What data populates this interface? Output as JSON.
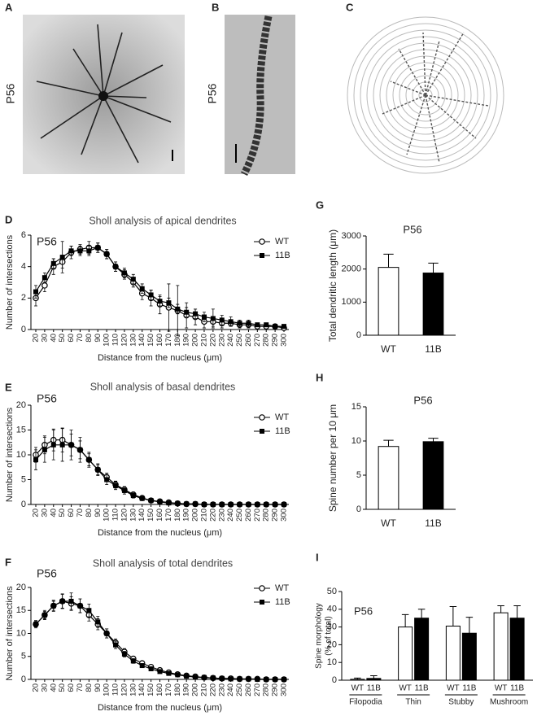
{
  "images": [
    {
      "panel": "A",
      "label": "P56"
    },
    {
      "panel": "B",
      "label": "P56"
    },
    {
      "panel": "C"
    }
  ],
  "chart_data": [
    {
      "type": "line",
      "panel": "D",
      "title": "Sholl analysis of apical dendrites",
      "annotation": "P56",
      "xlabel": "Distance from the nucleus (μm)",
      "ylabel": "Number of intersections",
      "legend": "upper right",
      "categories": [
        20,
        30,
        40,
        50,
        60,
        70,
        80,
        90,
        100,
        110,
        120,
        130,
        140,
        150,
        160,
        170,
        180,
        190,
        200,
        210,
        220,
        230,
        240,
        250,
        260,
        270,
        280,
        290,
        300
      ],
      "ylim": [
        0,
        6
      ],
      "yticks": [
        0,
        2,
        4,
        6
      ],
      "series": [
        {
          "name": "WT",
          "color": "#000000",
          "marker": "circle",
          "values": [
            2.0,
            2.8,
            4.0,
            4.3,
            4.9,
            5.1,
            5.2,
            5.2,
            4.8,
            4.0,
            3.5,
            3.0,
            2.3,
            2.0,
            1.6,
            1.4,
            1.2,
            0.9,
            0.8,
            0.5,
            0.5,
            0.4,
            0.4,
            0.3,
            0.3,
            0.2,
            0.2,
            0.2,
            0.1
          ],
          "errors": [
            0.5,
            0.4,
            0.5,
            0.4,
            0.4,
            0.3,
            0.4,
            0.3,
            0.3,
            0.3,
            0.3,
            0.3,
            0.4,
            0.5,
            0.6,
            1.5,
            1.6,
            0.8,
            0.5,
            0.4,
            0.3,
            0.3,
            0.2,
            0.2,
            0.2,
            0.2,
            0.1,
            0.1,
            0.1
          ]
        },
        {
          "name": "11B",
          "color": "#000000",
          "marker": "square",
          "values": [
            2.4,
            3.3,
            4.2,
            4.6,
            5.0,
            5.0,
            5.0,
            5.2,
            4.8,
            4.0,
            3.6,
            3.2,
            2.6,
            2.2,
            1.8,
            1.7,
            1.3,
            1.1,
            1.0,
            0.8,
            0.7,
            0.6,
            0.5,
            0.4,
            0.4,
            0.3,
            0.3,
            0.2,
            0.2
          ],
          "errors": [
            0.4,
            0.3,
            0.3,
            1.0,
            0.3,
            0.3,
            0.3,
            0.3,
            0.3,
            0.3,
            0.3,
            0.3,
            0.3,
            0.3,
            0.3,
            0.3,
            0.3,
            0.3,
            0.3,
            0.3,
            0.6,
            0.3,
            0.3,
            0.2,
            0.2,
            0.1,
            0.1,
            0.1,
            0.1
          ]
        }
      ]
    },
    {
      "type": "line",
      "panel": "E",
      "title": "Sholl analysis of basal dendrites",
      "annotation": "P56",
      "xlabel": "Distance from the nucleus (μm)",
      "ylabel": "Number of intersections",
      "legend": "upper right",
      "categories": [
        20,
        30,
        40,
        50,
        60,
        70,
        80,
        90,
        100,
        110,
        120,
        130,
        140,
        150,
        160,
        170,
        180,
        190,
        200,
        210,
        220,
        230,
        240,
        250,
        260,
        270,
        280,
        290,
        300
      ],
      "ylim": [
        0,
        20
      ],
      "yticks": [
        0,
        5,
        10,
        15,
        20
      ],
      "series": [
        {
          "name": "WT",
          "color": "#000000",
          "marker": "circle",
          "values": [
            10,
            12,
            13,
            13,
            12,
            11,
            9,
            7,
            5.5,
            4,
            3,
            2,
            1.3,
            0.8,
            0.6,
            0.4,
            0.2,
            0.1,
            0.1,
            0,
            0,
            0,
            0,
            0,
            0,
            0,
            0,
            0,
            0
          ],
          "errors": [
            1.5,
            1.8,
            2.2,
            2.4,
            2.2,
            1.8,
            1.2,
            1,
            0.8,
            0.7,
            0.6,
            0.5,
            0.4,
            0.3,
            0.2,
            0.2,
            0.1,
            0.1,
            0.1,
            0,
            0,
            0,
            0,
            0,
            0,
            0,
            0,
            0,
            0
          ]
        },
        {
          "name": "11B",
          "color": "#000000",
          "marker": "square",
          "values": [
            9,
            11,
            12,
            12,
            12,
            11,
            9,
            7,
            5,
            3.8,
            2.8,
            1.8,
            1.2,
            0.8,
            0.5,
            0.3,
            0.2,
            0.1,
            0.1,
            0,
            0,
            0,
            0,
            0,
            0,
            0,
            0,
            0,
            0
          ],
          "errors": [
            2,
            2.5,
            3,
            3.3,
            3,
            2.5,
            1.5,
            1.2,
            1,
            0.8,
            0.7,
            0.5,
            0.4,
            0.3,
            0.2,
            0.2,
            0.1,
            0.1,
            0.1,
            0,
            0,
            0,
            0,
            0,
            0,
            0,
            0,
            0,
            0
          ]
        }
      ]
    },
    {
      "type": "line",
      "panel": "F",
      "title": "Sholl analysis of total dendrites",
      "annotation": "P56",
      "xlabel": "Distance from the nucleus (μm)",
      "ylabel": "Number of intersections",
      "legend": "upper right",
      "categories": [
        20,
        30,
        40,
        50,
        60,
        70,
        80,
        90,
        100,
        110,
        120,
        130,
        140,
        150,
        160,
        170,
        180,
        190,
        200,
        210,
        220,
        230,
        240,
        250,
        260,
        270,
        280,
        290,
        300
      ],
      "ylim": [
        0,
        20
      ],
      "yticks": [
        0,
        5,
        10,
        15,
        20
      ],
      "series": [
        {
          "name": "WT",
          "color": "#000000",
          "marker": "circle",
          "values": [
            12,
            14,
            16,
            17,
            16.5,
            16,
            14,
            12,
            10,
            8,
            6,
            4.5,
            3.5,
            2.7,
            2,
            1.5,
            1.1,
            0.8,
            0.6,
            0.4,
            0.3,
            0.2,
            0.2,
            0.1,
            0.1,
            0.1,
            0,
            0,
            0
          ],
          "errors": [
            0.8,
            1,
            1.2,
            1.5,
            1.5,
            1.5,
            1.3,
            1.2,
            1,
            0.8,
            0.7,
            0.5,
            0.4,
            0.3,
            0.3,
            0.2,
            0.2,
            0.1,
            0.1,
            0.1,
            0.1,
            0,
            0,
            0,
            0,
            0,
            0,
            0,
            0
          ]
        },
        {
          "name": "11B",
          "color": "#000000",
          "marker": "square",
          "values": [
            12,
            14,
            16,
            17,
            17,
            16,
            15,
            12.5,
            10,
            7.5,
            5.5,
            4,
            3,
            2.3,
            1.7,
            1.3,
            1,
            0.7,
            0.5,
            0.4,
            0.3,
            0.2,
            0.1,
            0.1,
            0.1,
            0,
            0,
            0,
            0
          ],
          "errors": [
            0.6,
            0.8,
            1,
            1.6,
            1.8,
            1.5,
            1.4,
            1.2,
            1,
            0.8,
            0.6,
            0.5,
            0.4,
            0.3,
            0.3,
            0.2,
            0.2,
            0.1,
            0.1,
            0.1,
            0.1,
            0,
            0,
            0,
            0,
            0,
            0,
            0,
            0
          ]
        }
      ]
    },
    {
      "type": "bar",
      "panel": "G",
      "title": "P56",
      "ylabel": "Total dendritic length (μm)",
      "categories": [
        "WT",
        "11B"
      ],
      "values": [
        2050,
        1880
      ],
      "errors": [
        400,
        300
      ],
      "colors": [
        "#ffffff",
        "#000000"
      ],
      "ylim": [
        0,
        3000
      ],
      "yticks": [
        0,
        1000,
        2000,
        3000
      ]
    },
    {
      "type": "bar",
      "panel": "H",
      "title": "P56",
      "ylabel": "Spine number per 10 μm",
      "categories": [
        "WT",
        "11B"
      ],
      "values": [
        9.2,
        9.9
      ],
      "errors": [
        0.9,
        0.5
      ],
      "colors": [
        "#ffffff",
        "#000000"
      ],
      "ylim": [
        0,
        15
      ],
      "yticks": [
        0,
        5,
        10,
        15
      ]
    },
    {
      "type": "bar",
      "panel": "I",
      "title": "P56",
      "ylabel": [
        "Spine morphology",
        "(% of total)"
      ],
      "categories": [
        "Filopodia",
        "Thin",
        "Stubby",
        "Mushroom"
      ],
      "ylim": [
        0,
        50
      ],
      "yticks": [
        0,
        10,
        20,
        30,
        40,
        50
      ],
      "series": [
        {
          "name": "WT",
          "color": "#ffffff",
          "values": [
            0.5,
            30,
            30.5,
            38
          ],
          "errors": [
            0.7,
            7,
            11,
            4
          ]
        },
        {
          "name": "11B",
          "color": "#000000",
          "values": [
            1,
            35,
            26.5,
            35
          ],
          "errors": [
            1.5,
            5,
            9,
            7
          ]
        }
      ]
    }
  ]
}
